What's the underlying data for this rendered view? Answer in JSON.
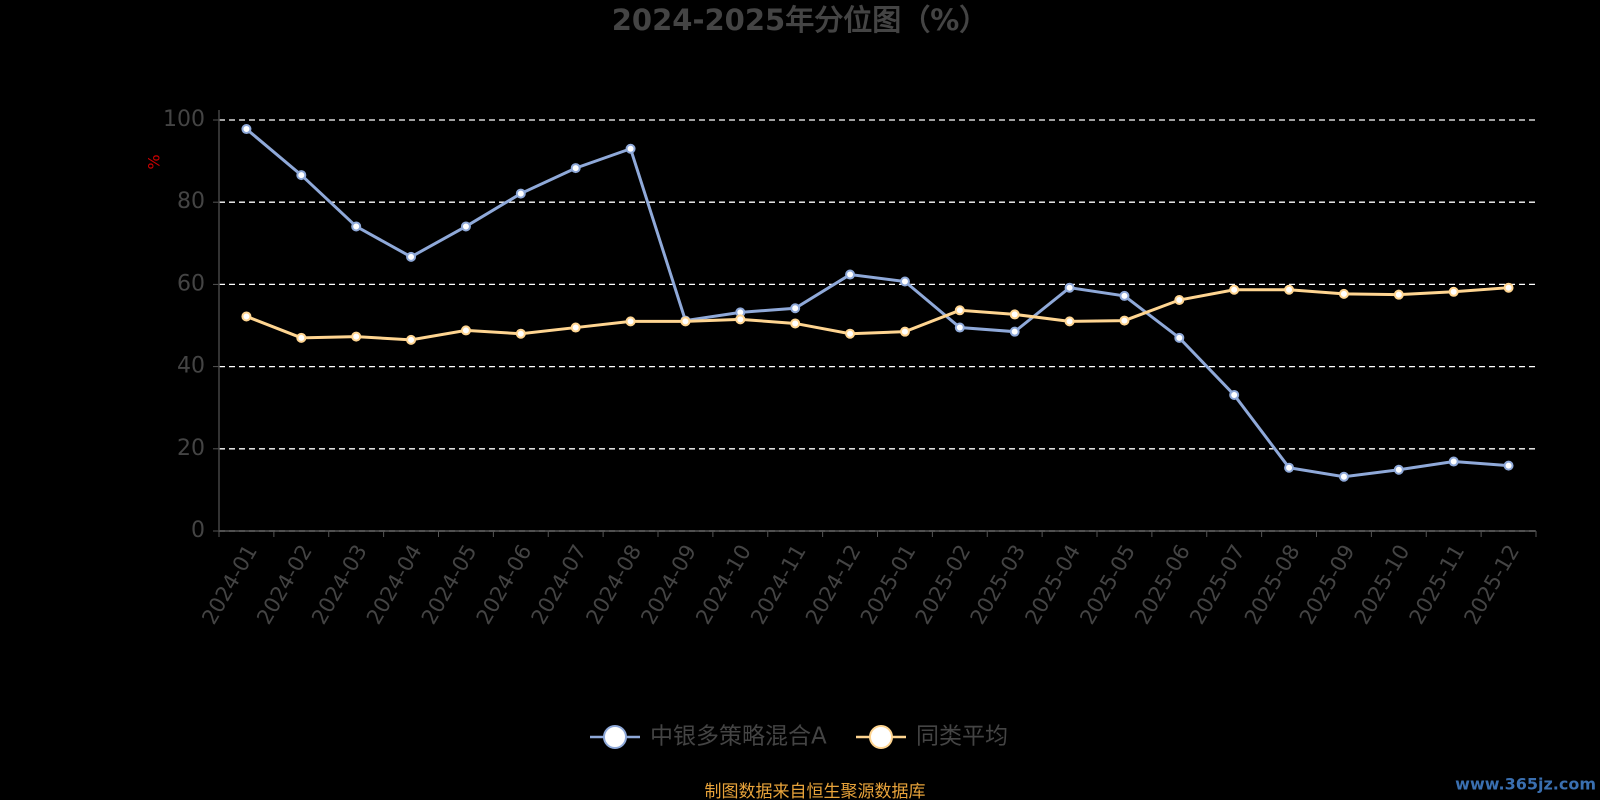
{
  "chart_data": {
    "type": "line",
    "title": "2024-2025年分位图（%）",
    "y_label": "%",
    "categories": [
      "2024-01",
      "2024-02",
      "2024-03",
      "2024-04",
      "2024-05",
      "2024-06",
      "2024-07",
      "2024-08",
      "2024-09",
      "2024-10",
      "2024-11",
      "2024-12",
      "2025-01",
      "2025-02",
      "2025-03",
      "2025-04",
      "2025-05",
      "2025-06",
      "2025-07",
      "2025-08",
      "2025-09",
      "2025-10",
      "2025-11",
      "2025-12"
    ],
    "series": [
      {
        "name": "中银多策略混合A",
        "color": "#8fa9d9",
        "values": [
          97.8,
          86.6,
          74.1,
          66.7,
          74.1,
          82.1,
          88.3,
          93.0,
          51.2,
          53.2,
          54.2,
          62.4,
          60.7,
          49.5,
          48.5,
          59.2,
          57.2,
          47.0,
          33.1,
          15.4,
          13.2,
          14.9,
          16.9,
          15.9
        ]
      },
      {
        "name": "同类平均",
        "color": "#ffd591",
        "values": [
          52.2,
          47.0,
          47.3,
          46.5,
          48.8,
          48.0,
          49.5,
          51.0,
          51.0,
          51.5,
          50.5,
          48.0,
          48.5,
          53.7,
          52.7,
          51.0,
          51.2,
          56.2,
          58.7,
          58.7,
          57.7,
          57.5,
          58.2,
          59.2
        ]
      }
    ],
    "ylim": [
      0,
      100
    ],
    "yticks": [
      0,
      20,
      40,
      60,
      80,
      100
    ],
    "grid": true,
    "footer": "制图数据来自恒生聚源数据库",
    "watermark": "www.365jz.com"
  }
}
